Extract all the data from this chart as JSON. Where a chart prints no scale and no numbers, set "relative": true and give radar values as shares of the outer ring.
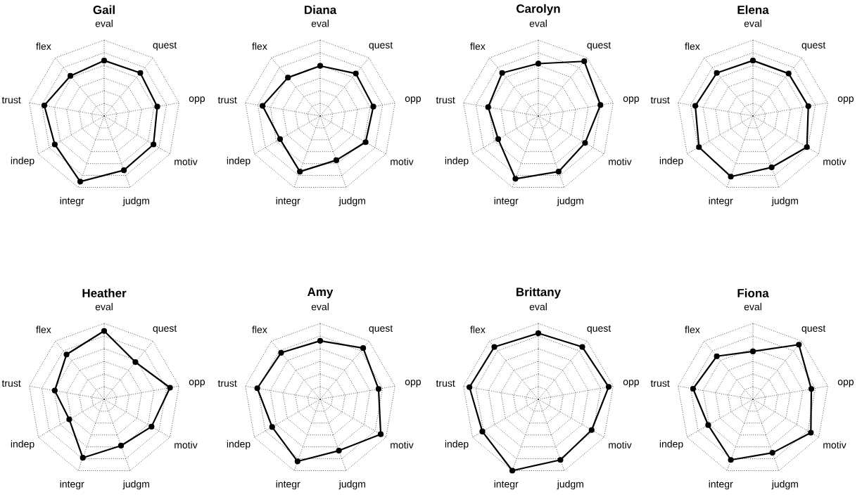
{
  "chart_data": [
    {
      "type": "radar",
      "title": "Gail",
      "relative": true,
      "grid": true,
      "marker": "circle",
      "line_style": "solid",
      "categories": [
        "eval",
        "quest",
        "opp",
        "motiv",
        "judgm",
        "integr",
        "indep",
        "trust",
        "flex"
      ],
      "series": [
        {
          "color": "#000000",
          "values": [
            0.73,
            0.74,
            0.71,
            0.75,
            0.76,
            0.92,
            0.75,
            0.8,
            0.69
          ]
        }
      ]
    },
    {
      "type": "radar",
      "title": "Diana",
      "relative": true,
      "grid": true,
      "marker": "circle",
      "line_style": "solid",
      "categories": [
        "eval",
        "quest",
        "opp",
        "motiv",
        "judgm",
        "integr",
        "indep",
        "trust",
        "flex"
      ],
      "series": [
        {
          "color": "#000000",
          "values": [
            0.66,
            0.73,
            0.71,
            0.69,
            0.62,
            0.78,
            0.61,
            0.77,
            0.66
          ]
        }
      ]
    },
    {
      "type": "radar",
      "title": "Carolyn",
      "relative": true,
      "grid": true,
      "marker": "circle",
      "line_style": "solid",
      "categories": [
        "eval",
        "quest",
        "opp",
        "motiv",
        "judgm",
        "integr",
        "indep",
        "trust",
        "flex"
      ],
      "series": [
        {
          "color": "#000000",
          "values": [
            0.69,
            0.94,
            0.83,
            0.71,
            0.78,
            0.88,
            0.61,
            0.67,
            0.74
          ]
        }
      ]
    },
    {
      "type": "radar",
      "title": "Elena",
      "relative": true,
      "grid": true,
      "marker": "circle",
      "line_style": "solid",
      "categories": [
        "eval",
        "quest",
        "opp",
        "motiv",
        "judgm",
        "integr",
        "indep",
        "trust",
        "flex"
      ],
      "series": [
        {
          "color": "#000000",
          "values": [
            0.73,
            0.73,
            0.74,
            0.82,
            0.72,
            0.85,
            0.82,
            0.77,
            0.74
          ]
        }
      ]
    },
    {
      "type": "radar",
      "title": "Heather",
      "relative": true,
      "grid": true,
      "marker": "circle",
      "line_style": "solid",
      "categories": [
        "eval",
        "quest",
        "opp",
        "motiv",
        "judgm",
        "integr",
        "indep",
        "trust",
        "flex"
      ],
      "series": [
        {
          "color": "#000000",
          "values": [
            0.9,
            0.64,
            0.88,
            0.72,
            0.65,
            0.82,
            0.53,
            0.66,
            0.77
          ]
        }
      ]
    },
    {
      "type": "radar",
      "title": "Amy",
      "relative": true,
      "grid": true,
      "marker": "circle",
      "line_style": "solid",
      "categories": [
        "eval",
        "quest",
        "opp",
        "motiv",
        "judgm",
        "integr",
        "indep",
        "trust",
        "flex"
      ],
      "series": [
        {
          "color": "#000000",
          "values": [
            0.77,
            0.88,
            0.78,
            0.92,
            0.72,
            0.87,
            0.73,
            0.84,
            0.8
          ]
        }
      ]
    },
    {
      "type": "radar",
      "title": "Brittany",
      "relative": true,
      "grid": true,
      "marker": "circle",
      "line_style": "solid",
      "categories": [
        "eval",
        "quest",
        "opp",
        "motiv",
        "judgm",
        "integr",
        "indep",
        "trust",
        "flex"
      ],
      "series": [
        {
          "color": "#000000",
          "values": [
            0.87,
            0.9,
            0.94,
            0.81,
            0.85,
            1.0,
            0.85,
            0.92,
            0.9
          ]
        }
      ]
    },
    {
      "type": "radar",
      "title": "Fiona",
      "relative": true,
      "grid": true,
      "marker": "circle",
      "line_style": "solid",
      "categories": [
        "eval",
        "quest",
        "opp",
        "motiv",
        "judgm",
        "integr",
        "indep",
        "trust",
        "flex"
      ],
      "series": [
        {
          "color": "#000000",
          "values": [
            0.63,
            0.94,
            0.78,
            0.88,
            0.75,
            0.85,
            0.68,
            0.8,
            0.74
          ]
        }
      ]
    }
  ]
}
